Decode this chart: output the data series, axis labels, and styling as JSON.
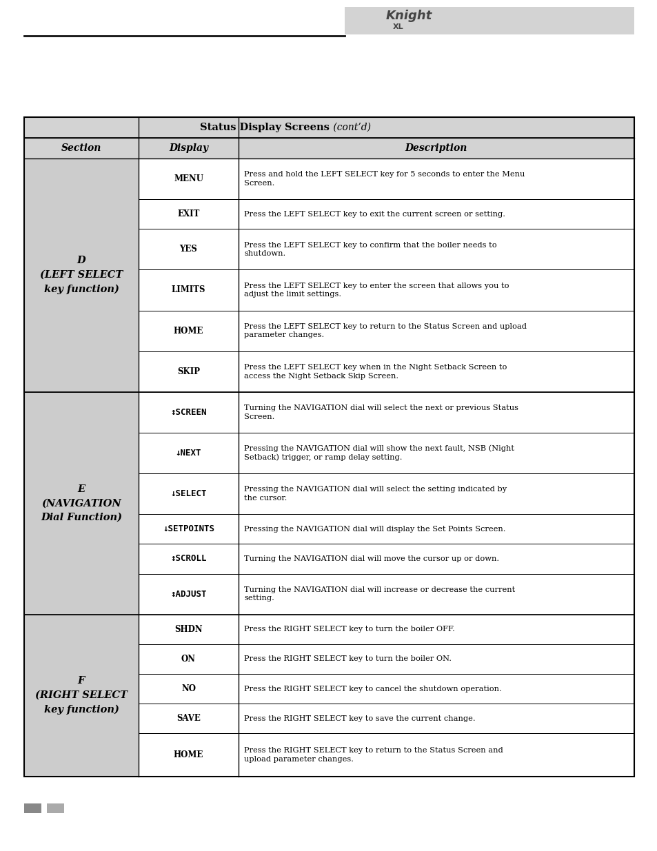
{
  "title_bold": "Status Display Screens",
  "title_italic": " (cont’d)",
  "header_bg": "#d3d3d3",
  "section_bg": "#cccccc",
  "white_bg": "#ffffff",
  "text_color": "#000000",
  "page_bg": "#ffffff",
  "logo_bg": "#d3d3d3",
  "sections": [
    {
      "label": "D\n(LEFT SELECT\nkey function)",
      "rows": [
        {
          "display": "MENU",
          "mono": false,
          "desc": "Press and hold the LEFT SELECT key for 5 seconds to enter the Menu\nScreen."
        },
        {
          "display": "EXIT",
          "mono": false,
          "desc": "Press the LEFT SELECT key to exit the current screen or setting."
        },
        {
          "display": "YES",
          "mono": false,
          "desc": "Press the LEFT SELECT key to confirm that the boiler needs to\nshutdown."
        },
        {
          "display": "LIMITS",
          "mono": false,
          "desc": "Press the LEFT SELECT key to enter the screen that allows you to\nadjust the limit settings."
        },
        {
          "display": "HOME",
          "mono": false,
          "desc": "Press the LEFT SELECT key to return to the Status Screen and upload\nparameter changes."
        },
        {
          "display": "SKIP",
          "mono": false,
          "desc": "Press the LEFT SELECT key when in the Night Setback Screen to\naccess the Night Setback Skip Screen."
        }
      ]
    },
    {
      "label": "E\n(NAVIGATION\nDial Function)",
      "rows": [
        {
          "display": "↕SCREEN",
          "mono": true,
          "desc": "Turning the NAVIGATION dial will select the next or previous Status\nScreen."
        },
        {
          "display": "↓NEXT",
          "mono": true,
          "desc": "Pressing the NAVIGATION dial will show the next fault, NSB (Night\nSetback) trigger, or ramp delay setting."
        },
        {
          "display": "↓SELECT",
          "mono": true,
          "desc": "Pressing the NAVIGATION dial will select the setting indicated by\nthe cursor."
        },
        {
          "display": "↓SETPOINTS",
          "mono": true,
          "desc": "Pressing the NAVIGATION dial will display the Set Points Screen."
        },
        {
          "display": "↕SCROLL",
          "mono": true,
          "desc": "Turning the NAVIGATION dial will move the cursor up or down."
        },
        {
          "display": "↕ADJUST",
          "mono": true,
          "desc": "Turning the NAVIGATION dial will increase or decrease the current\nsetting."
        }
      ]
    },
    {
      "label": "F\n(RIGHT SELECT\nkey function)",
      "rows": [
        {
          "display": "SHDN",
          "mono": false,
          "desc": "Press the RIGHT SELECT key to turn the boiler OFF."
        },
        {
          "display": "ON",
          "mono": false,
          "desc": "Press the RIGHT SELECT key to turn the boiler ON."
        },
        {
          "display": "NO",
          "mono": false,
          "desc": "Press the RIGHT SELECT key to cancel the shutdown operation."
        },
        {
          "display": "SAVE",
          "mono": false,
          "desc": "Press the RIGHT SELECT key to save the current change."
        },
        {
          "display": "HOME",
          "mono": false,
          "desc": "Press the RIGHT SELECT key to return to the Status Screen and\nupload parameter changes."
        }
      ]
    }
  ]
}
